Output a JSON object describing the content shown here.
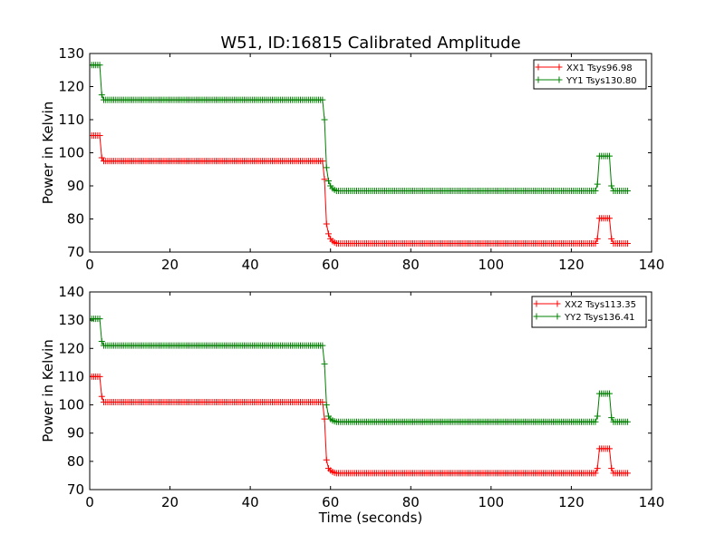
{
  "figure": {
    "title": "W51, ID:16815 Calibrated Amplitude"
  },
  "chart_data": [
    {
      "type": "line",
      "title": "W51, ID:16815 Calibrated Amplitude",
      "xlabel": "",
      "ylabel": "Power in Kelvin",
      "xlim": [
        0,
        140
      ],
      "ylim": [
        70,
        130
      ],
      "xticks": [
        "0",
        "20",
        "40",
        "60",
        "80",
        "100",
        "120",
        "140"
      ],
      "yticks": [
        "70",
        "80",
        "90",
        "100",
        "110",
        "120",
        "130"
      ],
      "legend_position": "top-right",
      "marker": "plus",
      "series": [
        {
          "name": "XX1 Tsys96.98",
          "color": "#ff0000",
          "x_start": 0,
          "x_step": 0.5,
          "count": 269,
          "segments": [
            {
              "from": 0,
              "to": 2.5,
              "value": 105.2
            },
            {
              "from": 3.5,
              "to": 58,
              "value": 97.5
            },
            {
              "from": 61.5,
              "to": 126,
              "value": 72.6
            },
            {
              "from": 127,
              "to": 129.5,
              "value": 80.2
            },
            {
              "from": 130.5,
              "to": 134,
              "value": 72.6
            }
          ],
          "transitions": [
            {
              "x": 3,
              "value": 98.5
            },
            {
              "x": 58.5,
              "value": 92
            },
            {
              "x": 59,
              "value": 78.5
            },
            {
              "x": 59.5,
              "value": 75.5
            },
            {
              "x": 60,
              "value": 74
            },
            {
              "x": 60.5,
              "value": 73.3
            },
            {
              "x": 61,
              "value": 72.9
            },
            {
              "x": 126.5,
              "value": 74
            },
            {
              "x": 130,
              "value": 74
            }
          ]
        },
        {
          "name": "YY1 Tsys130.80",
          "color": "#008000",
          "x_start": 0,
          "x_step": 0.5,
          "count": 269,
          "segments": [
            {
              "from": 0,
              "to": 2.5,
              "value": 126.5
            },
            {
              "from": 3.5,
              "to": 58,
              "value": 116
            },
            {
              "from": 61.5,
              "to": 126,
              "value": 88.5
            },
            {
              "from": 127,
              "to": 129.5,
              "value": 99
            },
            {
              "from": 130.5,
              "to": 134,
              "value": 88.5
            }
          ],
          "transitions": [
            {
              "x": 3,
              "value": 117.5
            },
            {
              "x": 58.5,
              "value": 110
            },
            {
              "x": 59,
              "value": 95.5
            },
            {
              "x": 59.5,
              "value": 91.5
            },
            {
              "x": 60,
              "value": 90
            },
            {
              "x": 60.5,
              "value": 89.2
            },
            {
              "x": 61,
              "value": 88.8
            },
            {
              "x": 126.5,
              "value": 90.5
            },
            {
              "x": 130,
              "value": 90
            }
          ]
        }
      ]
    },
    {
      "type": "line",
      "title": "",
      "xlabel": "Time (seconds)",
      "ylabel": "Power in Kelvin",
      "xlim": [
        0,
        140
      ],
      "ylim": [
        70,
        140
      ],
      "xticks": [
        "0",
        "20",
        "40",
        "60",
        "80",
        "100",
        "120",
        "140"
      ],
      "yticks": [
        "70",
        "80",
        "90",
        "100",
        "110",
        "120",
        "130",
        "140"
      ],
      "legend_position": "top-right",
      "marker": "plus",
      "series": [
        {
          "name": "XX2 Tsys113.35",
          "color": "#ff0000",
          "x_start": 0,
          "x_step": 0.5,
          "count": 269,
          "segments": [
            {
              "from": 0,
              "to": 2.5,
              "value": 110
            },
            {
              "from": 3.5,
              "to": 58,
              "value": 101
            },
            {
              "from": 61.5,
              "to": 126,
              "value": 75.8
            },
            {
              "from": 127,
              "to": 129.5,
              "value": 84.5
            },
            {
              "from": 130.5,
              "to": 134,
              "value": 75.8
            }
          ],
          "transitions": [
            {
              "x": 3,
              "value": 103
            },
            {
              "x": 58.5,
              "value": 95
            },
            {
              "x": 59,
              "value": 80.5
            },
            {
              "x": 59.5,
              "value": 77.5
            },
            {
              "x": 60,
              "value": 76.8
            },
            {
              "x": 60.5,
              "value": 76.3
            },
            {
              "x": 61,
              "value": 76
            },
            {
              "x": 126.5,
              "value": 77.5
            },
            {
              "x": 130,
              "value": 77.5
            }
          ]
        },
        {
          "name": "YY2 Tsys136.41",
          "color": "#008000",
          "x_start": 0,
          "x_step": 0.5,
          "count": 269,
          "segments": [
            {
              "from": 0,
              "to": 2.5,
              "value": 130.5
            },
            {
              "from": 3.5,
              "to": 58,
              "value": 121
            },
            {
              "from": 61.5,
              "to": 126,
              "value": 94
            },
            {
              "from": 127,
              "to": 129.5,
              "value": 104
            },
            {
              "from": 130.5,
              "to": 134,
              "value": 94
            }
          ],
          "transitions": [
            {
              "x": 3,
              "value": 122.5
            },
            {
              "x": 58.5,
              "value": 114.5
            },
            {
              "x": 59,
              "value": 100
            },
            {
              "x": 59.5,
              "value": 96
            },
            {
              "x": 60,
              "value": 95
            },
            {
              "x": 60.5,
              "value": 94.5
            },
            {
              "x": 61,
              "value": 94.2
            },
            {
              "x": 126.5,
              "value": 96
            },
            {
              "x": 130,
              "value": 95.5
            }
          ]
        }
      ]
    }
  ]
}
